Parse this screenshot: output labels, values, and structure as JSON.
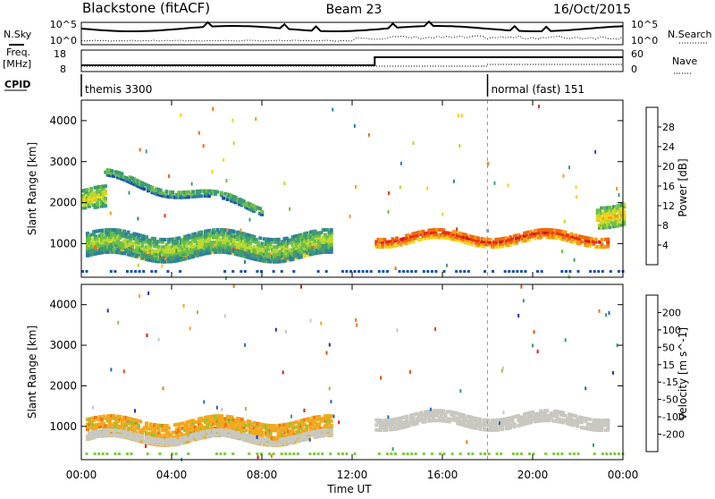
{
  "header": {
    "station": "Blackstone (fitACF)",
    "beam": "Beam 23",
    "date": "16/Oct/2015"
  },
  "strip_labels": {
    "nsky": "N.Sky",
    "nsearch": "N.Search",
    "freq_top": "Freq.",
    "freq_unit": "[MHz]",
    "nave": "Nave",
    "cpid": "CPID",
    "noise_hi": "10^5",
    "noise_lo": "10^0",
    "freq_hi": "18",
    "freq_lo": "8",
    "nave_hi": "60",
    "nave_lo": "0"
  },
  "cpid_modes": [
    {
      "start_h": 0,
      "label": "themis 3300"
    },
    {
      "start_h": 18,
      "label": "normal (fast) 151"
    }
  ],
  "xaxis": {
    "title": "Time UT",
    "ticks": [
      {
        "h": 0,
        "label": "00:00"
      },
      {
        "h": 4,
        "label": "04:00"
      },
      {
        "h": 8,
        "label": "08:00"
      },
      {
        "h": 12,
        "label": "12:00"
      },
      {
        "h": 16,
        "label": "16:00"
      },
      {
        "h": 20,
        "label": "20:00"
      },
      {
        "h": 24,
        "label": "00:00"
      }
    ]
  },
  "chart_data": [
    {
      "type": "heatmap",
      "title": "",
      "xlabel": "Time UT",
      "ylabel": "Slant Range [km]",
      "xlim": [
        0,
        24
      ],
      "ylim": [
        180,
        4500
      ],
      "yticks": [
        1000,
        2000,
        3000,
        4000
      ],
      "colorbar": {
        "label": "Power [dB]",
        "ticks": [
          "4",
          "8",
          "12",
          "16",
          "20",
          "24",
          "28"
        ],
        "tick_values": [
          4,
          8,
          12,
          16,
          20,
          24,
          28
        ],
        "range": [
          0,
          32
        ],
        "colors": [
          "#0a1bdc",
          "#1a4fb0",
          "#2d7fa0",
          "#3f9b73",
          "#6abf4a",
          "#b8d832",
          "#f4d21a",
          "#f59c15",
          "#ef6a10",
          "#e8300c",
          "#d8100a"
        ]
      },
      "features": [
        {
          "name": "main-band",
          "t0": 0.2,
          "t1": 11.0,
          "r_center": 850,
          "r_width": 260,
          "power": 18
        },
        {
          "name": "main-band-halo",
          "t0": 0.2,
          "t1": 11.0,
          "r_center": 1000,
          "r_width": 560,
          "power": 8
        },
        {
          "name": "arc",
          "t0": 1.0,
          "t1": 8.0,
          "r_center": 2700,
          "r_width": 180,
          "power": 6
        },
        {
          "name": "early-echo",
          "t0": 0.0,
          "t1": 1.0,
          "r_center": 2100,
          "r_width": 500,
          "power": 10
        },
        {
          "name": "afternoon-band",
          "t0": 13.0,
          "t1": 23.3,
          "r_center": 1200,
          "r_width": 240,
          "power": 20
        },
        {
          "name": "late-rise",
          "t0": 22.8,
          "t1": 24.0,
          "r_center": 1800,
          "r_width": 500,
          "power": 12
        }
      ]
    },
    {
      "type": "heatmap",
      "title": "",
      "xlabel": "Time UT",
      "ylabel": "Slant Range [km]",
      "xlim": [
        0,
        24
      ],
      "ylim": [
        180,
        4500
      ],
      "yticks": [
        1000,
        2000,
        3000,
        4000
      ],
      "colorbar": {
        "label": "Velocity [m s^-1]",
        "ticks": [
          "200",
          "100",
          "50",
          "15",
          "-15",
          "-50",
          "-100",
          "-200"
        ],
        "colors": [
          "#1a2ecf",
          "#2a62c0",
          "#3b9a74",
          "#7ccc3c",
          "#c8c8c0",
          "#f2a81c",
          "#f0761a",
          "#ea4a12",
          "#dc1a0e"
        ]
      },
      "features": [
        {
          "name": "main-band",
          "t0": 0.2,
          "t1": 11.0,
          "r_center": 950,
          "r_width": 500,
          "velocity": -40
        },
        {
          "name": "ground-scatter",
          "t0": 0.2,
          "t1": 11.0,
          "r_center": 780,
          "r_width": 140,
          "velocity": 0
        },
        {
          "name": "afternoon-band",
          "t0": 13.0,
          "t1": 23.3,
          "r_center": 1200,
          "r_width": 260,
          "velocity": 0
        }
      ]
    }
  ],
  "colors": {
    "frame": "#000000",
    "dashed_marker": "#999999"
  }
}
